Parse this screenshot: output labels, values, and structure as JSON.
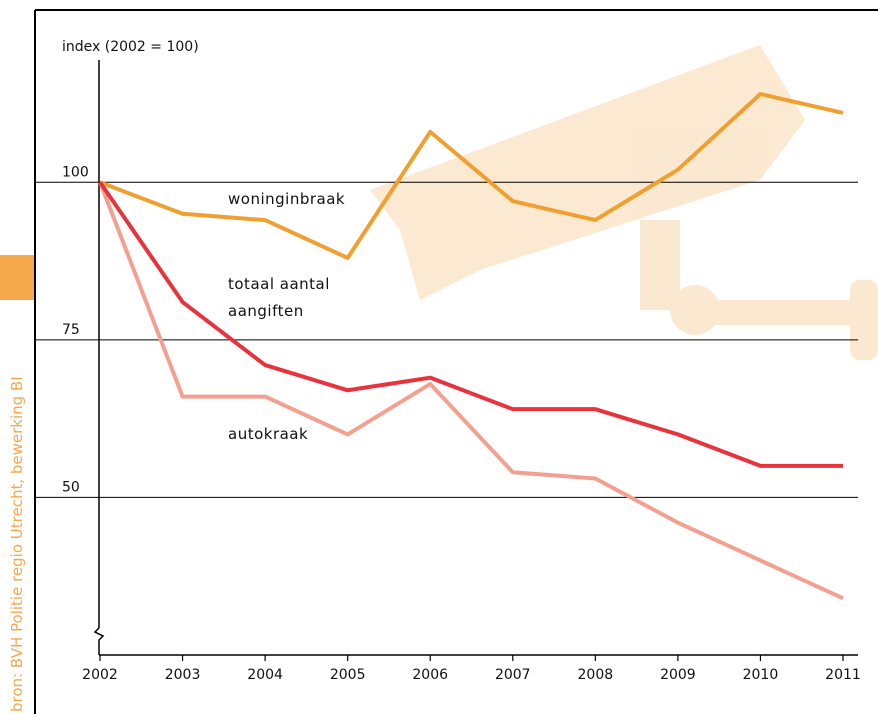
{
  "chart_data": {
    "type": "line",
    "y_label": "index (2002 = 100)",
    "source": "bron: BVH Politie regio Utrecht, bewerking BI",
    "categories": [
      "2002",
      "2003",
      "2004",
      "2005",
      "2006",
      "2007",
      "2008",
      "2009",
      "2010",
      "2011"
    ],
    "series": [
      {
        "name": "woninginbraak",
        "color": "#f0a030",
        "values": [
          100,
          95,
          94,
          88,
          108,
          97,
          94,
          102,
          114,
          111
        ]
      },
      {
        "name": "totaal aantal aangiften",
        "color": "#e8323c",
        "values": [
          100,
          81,
          71,
          67,
          69,
          64,
          64,
          60,
          55,
          55
        ]
      },
      {
        "name": "autokraak",
        "color": "#f4a090",
        "values": [
          100,
          66,
          66,
          60,
          68,
          54,
          53,
          46,
          40,
          34
        ]
      }
    ],
    "ylim": [
      25,
      119.4
    ],
    "yticks": [
      50,
      75,
      100
    ],
    "grid": true
  }
}
